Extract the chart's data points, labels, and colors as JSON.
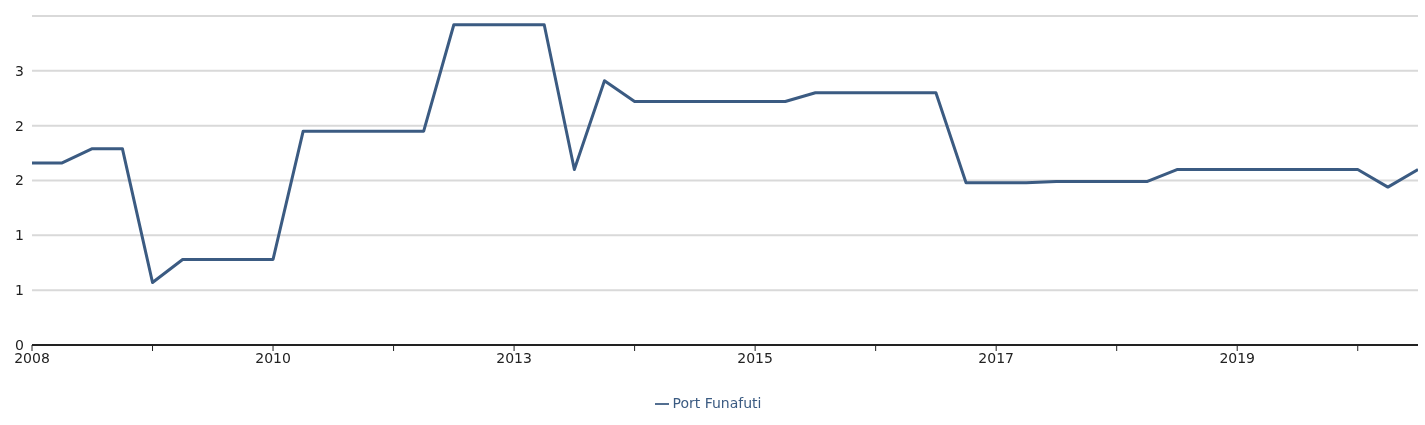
{
  "chart_data": {
    "type": "line",
    "x": [
      2008,
      2008.28125,
      2008.5625,
      2008.84375,
      2009.125,
      2009.40625,
      2009.6875,
      2009.96875,
      2010.25,
      2010.53125,
      2010.8125,
      2011.09375,
      2011.375,
      2011.65625,
      2011.9375,
      2012.21875,
      2012.5,
      2012.78125,
      2013.0625,
      2013.34375,
      2013.625,
      2013.90625,
      2014.1875,
      2014.46875,
      2014.75,
      2015.03125,
      2015.3125,
      2015.59375,
      2015.875,
      2016.15625,
      2016.4375,
      2016.71875,
      2017,
      2017.28125,
      2017.5625,
      2017.84375,
      2018.125,
      2018.40625,
      2018.6875,
      2018.96875,
      2019.25,
      2019.53125,
      2019.8125,
      2020.09375,
      2020.375,
      2020.65625,
      2020.9375
    ],
    "series": [
      {
        "name": "Port Funafuti",
        "color": "#3b5b82",
        "values": [
          1.66,
          1.66,
          1.79,
          1.79,
          0.57,
          0.78,
          0.78,
          0.78,
          0.78,
          1.95,
          1.95,
          1.95,
          1.95,
          1.95,
          2.92,
          2.92,
          2.92,
          2.92,
          1.6,
          2.41,
          2.22,
          2.22,
          2.22,
          2.22,
          2.22,
          2.22,
          2.3,
          2.3,
          2.3,
          2.3,
          2.3,
          1.48,
          1.48,
          1.48,
          1.49,
          1.49,
          1.49,
          1.49,
          1.6,
          1.6,
          1.6,
          1.6,
          1.6,
          1.6,
          1.6,
          1.44,
          1.6
        ]
      }
    ],
    "xlim": [
      2008,
      2020.9375
    ],
    "xticks": [
      {
        "value": 2008,
        "label": "2008"
      },
      {
        "value": 2009.125,
        "label": null
      },
      {
        "value": 2010.25,
        "label": "2010"
      },
      {
        "value": 2011.375,
        "label": null
      },
      {
        "value": 2012.5,
        "label": "2013"
      },
      {
        "value": 2013.625,
        "label": null
      },
      {
        "value": 2014.75,
        "label": "2015"
      },
      {
        "value": 2015.875,
        "label": null
      },
      {
        "value": 2017,
        "label": "2017"
      },
      {
        "value": 2018.125,
        "label": null
      },
      {
        "value": 2019.25,
        "label": "2019"
      },
      {
        "value": 2020.375,
        "label": null
      }
    ],
    "ylim": [
      0,
      3
    ],
    "yticks": [
      {
        "value": 0,
        "label": "0"
      },
      {
        "value": 0.5,
        "label": "1"
      },
      {
        "value": 1,
        "label": "1"
      },
      {
        "value": 1.5,
        "label": "2"
      },
      {
        "value": 2,
        "label": "2"
      },
      {
        "value": 2.5,
        "label": "3"
      }
    ],
    "grid": "y",
    "legend": "bottom",
    "marker": "none",
    "line_style": "solid"
  }
}
